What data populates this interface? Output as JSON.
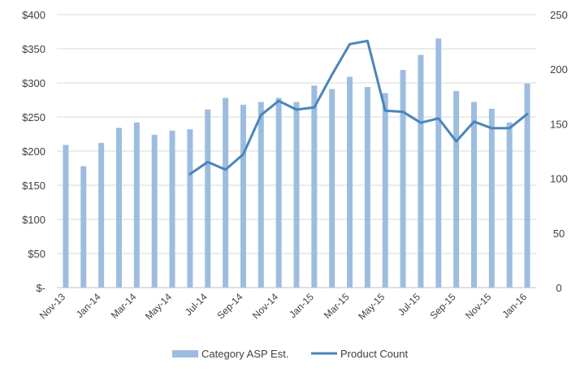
{
  "chart_data": {
    "type": "bar",
    "categories": [
      "Nov-13",
      "Dec-13",
      "Jan-14",
      "Feb-14",
      "Mar-14",
      "Apr-14",
      "May-14",
      "Jun-14",
      "Jul-14",
      "Aug-14",
      "Sep-14",
      "Oct-14",
      "Nov-14",
      "Dec-14",
      "Jan-15",
      "Feb-15",
      "Mar-15",
      "Apr-15",
      "May-15",
      "Jun-15",
      "Jul-15",
      "Aug-15",
      "Sep-15",
      "Oct-15",
      "Nov-15",
      "Dec-15",
      "Jan-16"
    ],
    "x_tick_labels": [
      "Nov-13",
      "Jan-14",
      "Mar-14",
      "May-14",
      "Jul-14",
      "Sep-14",
      "Nov-14",
      "Jan-15",
      "Mar-15",
      "May-15",
      "Jul-15",
      "Sep-15",
      "Nov-15",
      "Jan-16"
    ],
    "series": [
      {
        "name": "Category ASP Est.",
        "type": "bar",
        "axis": "left",
        "color": "#9dbde0",
        "values": [
          209,
          178,
          212,
          234,
          242,
          224,
          230,
          232,
          261,
          278,
          268,
          272,
          278,
          272,
          296,
          291,
          309,
          294,
          285,
          319,
          341,
          365,
          288,
          272,
          262,
          242,
          299
        ]
      },
      {
        "name": "Product Count",
        "type": "line",
        "axis": "right",
        "color": "#4a85bb",
        "values": [
          null,
          null,
          null,
          null,
          null,
          null,
          null,
          104,
          115,
          108,
          122,
          158,
          171,
          163,
          165,
          195,
          223,
          226,
          162,
          161,
          151,
          155,
          134,
          152,
          146,
          146,
          159
        ]
      }
    ],
    "y_left": {
      "ticks": [
        0,
        50,
        100,
        150,
        200,
        250,
        300,
        350,
        400
      ],
      "tick_labels": [
        "$-",
        "$50",
        "$100",
        "$150",
        "$200",
        "$250",
        "$300",
        "$350",
        "$400"
      ],
      "ylim": [
        0,
        400
      ]
    },
    "y_right": {
      "ticks": [
        0,
        50,
        100,
        150,
        200,
        250
      ],
      "tick_labels": [
        "0",
        "50",
        "100",
        "150",
        "200",
        "250"
      ],
      "ylim": [
        0,
        250
      ]
    },
    "grid": true,
    "legend": "bottom",
    "title": "",
    "xlabel": "",
    "ylabel": ""
  }
}
